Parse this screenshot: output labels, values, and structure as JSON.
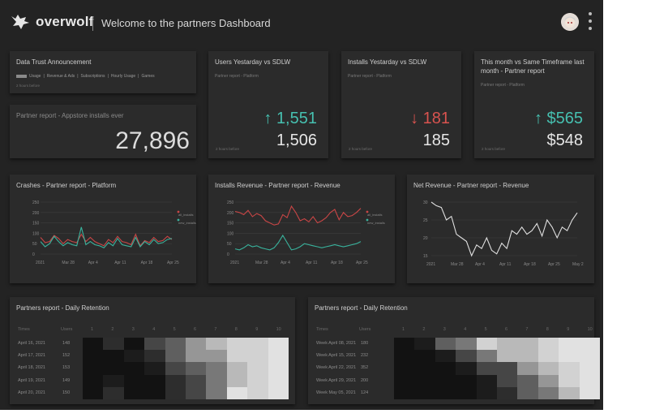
{
  "header": {
    "logo_text": "overwolf",
    "title": "Welcome to the partners Dashboard"
  },
  "announcement": {
    "title": "Data Trust Announcement",
    "tags": [
      "Usage",
      "Revenue & Ads",
      "Subscriptions",
      "Hourly Usage",
      "Games"
    ],
    "note": "2 hours before"
  },
  "installs_ever": {
    "title": "Partner report - Appstore installs ever",
    "value": "27,896"
  },
  "kpis": [
    {
      "title": "Users Yestarday vs SDLW",
      "sub": "Partner report - Platform",
      "arrow": "↑",
      "delta": "1,551",
      "trend": "up",
      "value": "1,506",
      "note": "2 hours before"
    },
    {
      "title": "Installs Yestarday vs SDLW",
      "sub": "Partner report - Platform",
      "arrow": "↓",
      "delta": "181",
      "trend": "down",
      "value": "185",
      "note": "2 hours before"
    },
    {
      "title": "This month vs Same Timeframe last month - Partner report",
      "sub": "Partner report - Platform",
      "arrow": "↑",
      "delta": "$565",
      "trend": "up",
      "value": "$548",
      "note": "2 hours before"
    }
  ],
  "colors": {
    "up": "#46c0b0",
    "down": "#d9534f",
    "red_series": "#c94646",
    "teal_series": "#39b39d",
    "white_series": "#e0e0e0"
  },
  "chart_data": [
    {
      "type": "line",
      "title": "Crashes - Partner report - Platform",
      "yticks": [
        "250",
        "200",
        "150",
        "100",
        "50",
        "0"
      ],
      "ylim": [
        0,
        250
      ],
      "xticks": [
        "2021",
        "Mar 28",
        "Apr 4",
        "Apr 11",
        "Apr 18",
        "Apr 25"
      ],
      "legend": [
        "all_installs",
        "new_installs"
      ],
      "series": [
        {
          "name": "all_installs",
          "color": "red",
          "values": [
            80,
            55,
            60,
            90,
            75,
            50,
            70,
            60,
            55,
            95,
            60,
            80,
            60,
            50,
            40,
            70,
            55,
            85,
            60,
            55,
            45,
            95,
            40,
            65,
            55,
            80,
            60,
            65,
            85,
            70
          ]
        },
        {
          "name": "new_installs",
          "color": "teal",
          "values": [
            60,
            35,
            50,
            85,
            60,
            40,
            55,
            45,
            40,
            130,
            45,
            60,
            45,
            40,
            30,
            55,
            40,
            75,
            45,
            40,
            35,
            80,
            35,
            60,
            45,
            70,
            50,
            55,
            70,
            75
          ]
        }
      ]
    },
    {
      "type": "line",
      "title": "Installs Revenue - Partner report - Revenue",
      "yticks": [
        "250",
        "200",
        "150",
        "100",
        "50",
        "0"
      ],
      "ylim": [
        0,
        250
      ],
      "xticks": [
        "2021",
        "Mar 28",
        "Apr 4",
        "Apr 11",
        "Apr 18",
        "Apr 25"
      ],
      "legend": [
        "all_installs",
        "new_installs"
      ],
      "series": [
        {
          "name": "all_installs",
          "color": "red",
          "values": [
            205,
            200,
            190,
            210,
            180,
            195,
            185,
            160,
            150,
            140,
            145,
            190,
            175,
            230,
            200,
            160,
            170,
            155,
            180,
            150,
            160,
            175,
            200,
            215,
            165,
            200,
            180,
            185,
            200,
            220
          ]
        },
        {
          "name": "new_installs",
          "color": "teal",
          "values": [
            25,
            20,
            30,
            45,
            35,
            40,
            30,
            25,
            20,
            30,
            55,
            90,
            55,
            20,
            25,
            35,
            50,
            45,
            40,
            35,
            30,
            35,
            40,
            45,
            40,
            35,
            40,
            45,
            50,
            60
          ]
        }
      ]
    },
    {
      "type": "line",
      "title": "Net Revenue - Partner report - Revenue",
      "yticks": [
        "30",
        "25",
        "20",
        "15"
      ],
      "ylim": [
        15,
        30
      ],
      "xticks": [
        "2021",
        "Mar 28",
        "Apr 4",
        "Apr 11",
        "Apr 18",
        "Apr 25",
        "May 2"
      ],
      "series": [
        {
          "name": "net_revenue",
          "color": "white",
          "values": [
            30,
            29,
            28.5,
            25,
            26,
            21,
            20,
            19,
            15,
            18,
            17,
            20,
            16.5,
            15.5,
            18.5,
            17,
            22,
            21,
            23,
            21,
            22,
            24,
            20.5,
            25,
            23,
            20,
            23,
            22,
            25,
            27
          ]
        }
      ]
    }
  ],
  "retention": [
    {
      "title": "Partners report - Daily Retention",
      "head_times": "Times",
      "head_users": "Users",
      "cols": [
        "1",
        "2",
        "3",
        "4",
        "5",
        "6",
        "7",
        "8",
        "9",
        "10"
      ],
      "rows": [
        {
          "time": "April 16, 2021",
          "users": "148",
          "shades": [
            1,
            3,
            1,
            4,
            5,
            7,
            8,
            9,
            9,
            10
          ]
        },
        {
          "time": "April 17, 2021",
          "users": "152",
          "shades": [
            1,
            1,
            2,
            3,
            5,
            7,
            7,
            9,
            9,
            10
          ]
        },
        {
          "time": "April 18, 2021",
          "users": "153",
          "shades": [
            1,
            1,
            1,
            2,
            4,
            5,
            6,
            8,
            9,
            10
          ]
        },
        {
          "time": "April 19, 2021",
          "users": "149",
          "shades": [
            1,
            2,
            1,
            1,
            3,
            4,
            6,
            8,
            9,
            10
          ]
        },
        {
          "time": "April 20, 2021",
          "users": "150",
          "shades": [
            1,
            3,
            1,
            1,
            3,
            4,
            6,
            10,
            9,
            10
          ]
        }
      ]
    },
    {
      "title": "Partners report - Daily Retention",
      "head_times": "Times",
      "head_users": "Users",
      "cols": [
        "1",
        "2",
        "3",
        "4",
        "5",
        "6",
        "7",
        "8",
        "9",
        "10"
      ],
      "rows": [
        {
          "time": "Week April 08, 2021",
          "users": "180",
          "shades": [
            1,
            2,
            5,
            6,
            9,
            8,
            8,
            9,
            10,
            10
          ]
        },
        {
          "time": "Week April 15, 2021",
          "users": "232",
          "shades": [
            1,
            1,
            2,
            4,
            6,
            8,
            8,
            9,
            10,
            10
          ]
        },
        {
          "time": "Week April 22, 2021",
          "users": "352",
          "shades": [
            1,
            1,
            1,
            2,
            4,
            4,
            7,
            8,
            9,
            10
          ]
        },
        {
          "time": "Week April 29, 2021",
          "users": "200",
          "shades": [
            1,
            1,
            1,
            1,
            2,
            4,
            5,
            7,
            9,
            10
          ]
        },
        {
          "time": "Week May 05, 2021",
          "users": "124",
          "shades": [
            1,
            1,
            1,
            1,
            2,
            3,
            5,
            6,
            8,
            10
          ]
        }
      ]
    }
  ]
}
